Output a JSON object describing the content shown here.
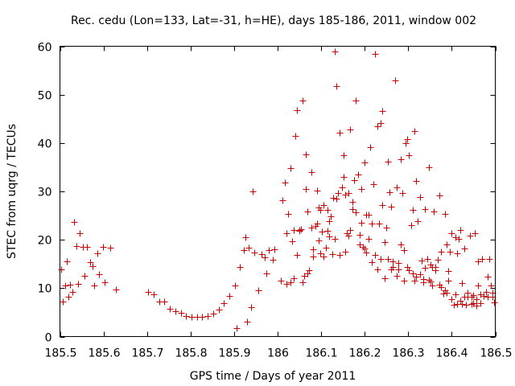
{
  "chart_data": {
    "type": "scatter",
    "title": "Rec. cedu (Lon=133, Lat=-31, h=HE), days 185-186, 2011, window 002",
    "xlabel": "GPS time / Days of year 2011",
    "ylabel": "STEC from uqrg / TECUs",
    "xlim": [
      185.5,
      186.5
    ],
    "ylim": [
      0,
      60
    ],
    "xticks": [
      185.5,
      185.6,
      185.7,
      185.8,
      185.9,
      186,
      186.1,
      186.2,
      186.3,
      186.4,
      186.5
    ],
    "xtick_labels": [
      "185.5",
      "185.6",
      "185.7",
      "185.8",
      "185.9",
      "186",
      "186.1",
      "186.2",
      "186.3",
      "186.4",
      "186.5"
    ],
    "yticks": [
      0,
      10,
      20,
      30,
      40,
      50,
      60
    ],
    "ytick_labels": [
      "0",
      "10",
      "20",
      "30",
      "40",
      "50",
      "60"
    ],
    "marker": "+",
    "color": "#cc0000",
    "series": [
      {
        "name": "STEC",
        "x": [
          185.503,
          185.507,
          185.512,
          185.516,
          185.52,
          185.524,
          185.528,
          185.532,
          185.537,
          185.541,
          185.545,
          185.553,
          185.557,
          185.561,
          185.57,
          185.574,
          185.578,
          185.586,
          185.59,
          185.598,
          185.603,
          185.615,
          185.628,
          185.703,
          185.716,
          185.728,
          185.74,
          185.753,
          185.765,
          185.778,
          185.79,
          185.803,
          185.815,
          185.827,
          185.84,
          185.852,
          185.865,
          185.877,
          185.89,
          185.902,
          185.906,
          185.914,
          185.922,
          185.926,
          185.93,
          185.934,
          185.939,
          185.943,
          185.947,
          185.955,
          185.963,
          185.971,
          185.975,
          185.979,
          185.988,
          185.992,
          186.008,
          186.012,
          186.016,
          186.02,
          186.024,
          186.029,
          186.033,
          186.037,
          186.041,
          186.045,
          186.049,
          186.053,
          186.057,
          186.061,
          186.065,
          186.069,
          186.073,
          186.077,
          186.082,
          186.086,
          186.09,
          186.094,
          186.098,
          186.102,
          186.106,
          186.11,
          186.114,
          186.118,
          186.122,
          186.126,
          186.131,
          186.135,
          186.139,
          186.143,
          186.147,
          186.151,
          186.155,
          186.159,
          186.163,
          186.167,
          186.171,
          186.175,
          186.18,
          186.184,
          186.188,
          186.192,
          186.196,
          186.2,
          186.204,
          186.208,
          186.212,
          186.216,
          186.22,
          186.224,
          186.229,
          186.233,
          186.237,
          186.241,
          186.245,
          186.249,
          186.253,
          186.257,
          186.261,
          186.265,
          186.269,
          186.273,
          186.278,
          186.282,
          186.286,
          186.29,
          186.294,
          186.298,
          186.302,
          186.306,
          186.31,
          186.314,
          186.318,
          186.322,
          186.327,
          186.331,
          186.335,
          186.339,
          186.343,
          186.347,
          186.351,
          186.355,
          186.359,
          186.363,
          186.367,
          186.371,
          186.376,
          186.38,
          186.384,
          186.388,
          186.392,
          186.396,
          186.4,
          186.404,
          186.408,
          186.412,
          186.416,
          186.42,
          186.424,
          186.429,
          186.433,
          186.437,
          186.441,
          186.445,
          186.449,
          186.453,
          186.457,
          186.461,
          186.465,
          186.469,
          186.473,
          186.478,
          186.482,
          186.486,
          186.49,
          186.494,
          186.498,
          186.045,
          186.057,
          186.069,
          186.082,
          186.094,
          186.106,
          186.118,
          186.131,
          186.143,
          186.155,
          186.167,
          186.18,
          186.192,
          186.204,
          186.216,
          186.229,
          186.241,
          186.253,
          186.265,
          186.278,
          186.29,
          186.302,
          186.314,
          186.327,
          186.339,
          186.351,
          186.363,
          186.376,
          186.388,
          186.4,
          186.412,
          186.424,
          186.437,
          186.449,
          186.461,
          186.065,
          186.098,
          186.135,
          186.171,
          186.208,
          186.245,
          186.282,
          186.318,
          186.355,
          186.392,
          186.429,
          186.465,
          186.02,
          186.029,
          186.037,
          186.049,
          186.077,
          186.09,
          186.114,
          186.127,
          186.151,
          186.163,
          186.188,
          186.2,
          186.224,
          186.237,
          186.261,
          186.273,
          186.298,
          186.31,
          186.335,
          186.347,
          186.371,
          186.384,
          186.408,
          186.42,
          186.445,
          186.457,
          186.482,
          186.494
        ],
        "y": [
          13.8,
          7.2,
          10.5,
          15.6,
          8.2,
          10.8,
          9.3,
          23.7,
          18.7,
          10.9,
          21.3,
          18.6,
          12.6,
          18.6,
          15.3,
          14.6,
          10.5,
          17.2,
          12.9,
          18.6,
          11.2,
          18.3,
          9.8,
          9.2,
          8.8,
          7.3,
          7.3,
          5.7,
          5.3,
          4.9,
          4.2,
          4.1,
          4.0,
          4.1,
          4.2,
          4.7,
          5.5,
          6.9,
          8.4,
          10.5,
          1.8,
          14.3,
          17.9,
          20.6,
          3.0,
          18.3,
          6.0,
          30.0,
          17.3,
          9.5,
          17.0,
          16.4,
          13.1,
          17.8,
          15.9,
          18.0,
          11.5,
          28.1,
          31.8,
          10.9,
          25.3,
          34.9,
          19.7,
          12.0,
          41.5,
          46.8,
          22.1,
          22.2,
          48.8,
          12.6,
          37.6,
          25.8,
          13.7,
          34.0,
          18.1,
          22.9,
          30.1,
          26.6,
          17.2,
          21.7,
          27.1,
          18.3,
          21.9,
          20.7,
          24.9,
          17.1,
          59.0,
          51.8,
          29.7,
          42.1,
          30.8,
          37.5,
          29.4,
          21.4,
          20.8,
          42.8,
          26.4,
          32.3,
          48.8,
          33.5,
          21.1,
          30.5,
          18.5,
          36.0,
          17.3,
          20.2,
          39.1,
          15.4,
          31.5,
          58.5,
          43.4,
          23.3,
          44.2,
          46.6,
          12.0,
          22.6,
          36.2,
          29.9,
          26.8,
          15.6,
          52.9,
          30.9,
          13.8,
          36.6,
          29.7,
          17.9,
          39.9,
          40.8,
          37.4,
          23.1,
          26.1,
          42.4,
          32.2,
          23.9,
          28.8,
          15.7,
          11.2,
          26.4,
          16.0,
          35.0,
          14.8,
          10.6,
          25.8,
          13.7,
          15.9,
          29.1,
          17.6,
          8.9,
          25.3,
          19.1,
          13.5,
          17.6,
          21.3,
          6.5,
          20.6,
          17.2,
          20.2,
          22.0,
          11.1,
          18.2,
          6.6,
          9.1,
          20.9,
          8.3,
          8.5,
          21.3,
          7.8,
          15.5,
          8.8,
          16.1,
          8.4,
          9.2,
          12.3,
          16.0,
          10.5,
          8.3,
          7.0,
          16.9,
          11.2,
          13.0,
          16.5,
          19.8,
          16.5,
          23.9,
          20.2,
          16.9,
          17.6,
          22.1,
          25.7,
          23.5,
          25.2,
          23.3,
          13.9,
          27.1,
          16.1,
          14.3,
          15.2,
          11.5,
          13.7,
          11.5,
          12.9,
          14.2,
          11.4,
          14.3,
          10.2,
          9.0,
          7.8,
          6.7,
          6.8,
          8.3,
          6.9,
          10.5,
          30.5,
          26.1,
          28.5,
          27.8,
          25.2,
          19.6,
          19.1,
          12.4,
          14.3,
          11.5,
          8.2,
          6.9,
          21.3,
          11.3,
          22.0,
          21.8,
          22.5,
          23.4,
          26.1,
          28.7,
          33.0,
          29.7,
          19.1,
          18.2,
          16.8,
          16.1,
          13.8,
          12.6,
          14.3,
          13.0,
          11.9,
          11.7,
          10.8,
          9.6,
          8.7,
          7.4,
          6.8,
          6.4,
          8.2,
          9.0
        ]
      }
    ]
  }
}
